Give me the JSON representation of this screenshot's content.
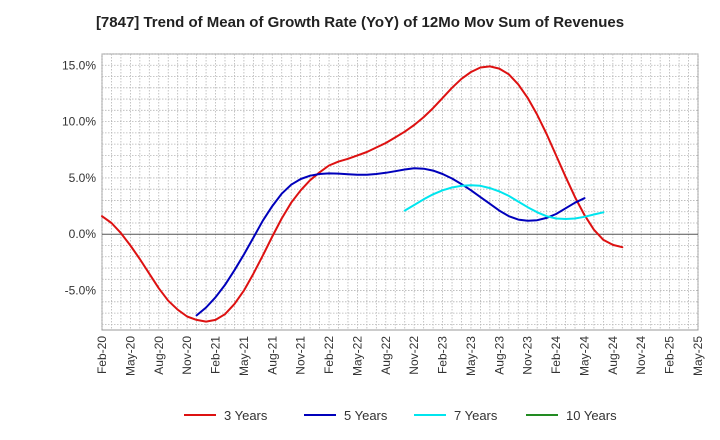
{
  "chart_data": {
    "type": "line",
    "title": "[7847]  Trend of Mean of Growth Rate (YoY) of 12Mo Mov Sum of Revenues",
    "xlabel": "",
    "ylabel": "",
    "x_ticks": [
      "Feb-20",
      "May-20",
      "Aug-20",
      "Nov-20",
      "Feb-21",
      "May-21",
      "Aug-21",
      "Nov-21",
      "Feb-22",
      "May-22",
      "Aug-22",
      "Nov-22",
      "Feb-23",
      "May-23",
      "Aug-23",
      "Nov-23",
      "Feb-24",
      "May-24",
      "Aug-24",
      "Nov-24",
      "Feb-25",
      "May-25"
    ],
    "y_ticks": [
      "15.0%",
      "10.0%",
      "5.0%",
      "0.0%",
      "-5.0%"
    ],
    "y_tick_values": [
      15,
      10,
      5,
      0,
      -5
    ],
    "ylim": [
      -8.5,
      16
    ],
    "x_range": [
      0,
      63
    ],
    "grid": true,
    "legend_position": "bottom",
    "series": [
      {
        "name": "3 Years",
        "color": "#dd1111",
        "points": [
          [
            0,
            1.6
          ],
          [
            1,
            1.0
          ],
          [
            2,
            0.1
          ],
          [
            3,
            -1.0
          ],
          [
            4,
            -2.2
          ],
          [
            5,
            -3.5
          ],
          [
            6,
            -4.8
          ],
          [
            7,
            -5.9
          ],
          [
            8,
            -6.7
          ],
          [
            9,
            -7.3
          ],
          [
            10,
            -7.6
          ],
          [
            11,
            -7.75
          ],
          [
            12,
            -7.6
          ],
          [
            13,
            -7.1
          ],
          [
            14,
            -6.2
          ],
          [
            15,
            -5.0
          ],
          [
            16,
            -3.5
          ],
          [
            17,
            -1.9
          ],
          [
            18,
            -0.2
          ],
          [
            19,
            1.4
          ],
          [
            20,
            2.8
          ],
          [
            21,
            3.9
          ],
          [
            22,
            4.8
          ],
          [
            23,
            5.5
          ],
          [
            24,
            6.1
          ],
          [
            25,
            6.45
          ],
          [
            26,
            6.7
          ],
          [
            27,
            7.0
          ],
          [
            28,
            7.3
          ],
          [
            29,
            7.7
          ],
          [
            30,
            8.1
          ],
          [
            31,
            8.6
          ],
          [
            32,
            9.1
          ],
          [
            33,
            9.7
          ],
          [
            34,
            10.4
          ],
          [
            35,
            11.2
          ],
          [
            36,
            12.1
          ],
          [
            37,
            13.0
          ],
          [
            38,
            13.8
          ],
          [
            39,
            14.4
          ],
          [
            40,
            14.8
          ],
          [
            41,
            14.9
          ],
          [
            42,
            14.7
          ],
          [
            43,
            14.2
          ],
          [
            44,
            13.3
          ],
          [
            45,
            12.1
          ],
          [
            46,
            10.6
          ],
          [
            47,
            8.9
          ],
          [
            48,
            7.0
          ],
          [
            49,
            5.1
          ],
          [
            50,
            3.3
          ],
          [
            51,
            1.7
          ],
          [
            52,
            0.4
          ],
          [
            53,
            -0.5
          ],
          [
            54,
            -0.95
          ],
          [
            55,
            -1.15
          ]
        ]
      },
      {
        "name": "5 Years",
        "color": "#0000bb",
        "points": [
          [
            10,
            -7.2
          ],
          [
            11,
            -6.5
          ],
          [
            12,
            -5.6
          ],
          [
            13,
            -4.5
          ],
          [
            14,
            -3.2
          ],
          [
            15,
            -1.8
          ],
          [
            16,
            -0.3
          ],
          [
            17,
            1.2
          ],
          [
            18,
            2.5
          ],
          [
            19,
            3.6
          ],
          [
            20,
            4.4
          ],
          [
            21,
            4.9
          ],
          [
            22,
            5.2
          ],
          [
            23,
            5.35
          ],
          [
            24,
            5.4
          ],
          [
            25,
            5.38
          ],
          [
            26,
            5.33
          ],
          [
            27,
            5.28
          ],
          [
            28,
            5.28
          ],
          [
            29,
            5.35
          ],
          [
            30,
            5.45
          ],
          [
            31,
            5.6
          ],
          [
            32,
            5.75
          ],
          [
            33,
            5.85
          ],
          [
            34,
            5.82
          ],
          [
            35,
            5.65
          ],
          [
            36,
            5.35
          ],
          [
            37,
            4.95
          ],
          [
            38,
            4.45
          ],
          [
            39,
            3.9
          ],
          [
            40,
            3.3
          ],
          [
            41,
            2.7
          ],
          [
            42,
            2.1
          ],
          [
            43,
            1.6
          ],
          [
            44,
            1.3
          ],
          [
            45,
            1.2
          ],
          [
            46,
            1.25
          ],
          [
            47,
            1.45
          ],
          [
            48,
            1.8
          ],
          [
            49,
            2.3
          ],
          [
            50,
            2.8
          ],
          [
            51,
            3.2
          ]
        ]
      },
      {
        "name": "7 Years",
        "color": "#00e5ee",
        "points": [
          [
            32,
            2.1
          ],
          [
            33,
            2.6
          ],
          [
            34,
            3.1
          ],
          [
            35,
            3.55
          ],
          [
            36,
            3.9
          ],
          [
            37,
            4.15
          ],
          [
            38,
            4.3
          ],
          [
            39,
            4.35
          ],
          [
            40,
            4.3
          ],
          [
            41,
            4.1
          ],
          [
            42,
            3.8
          ],
          [
            43,
            3.4
          ],
          [
            44,
            2.9
          ],
          [
            45,
            2.4
          ],
          [
            46,
            1.95
          ],
          [
            47,
            1.6
          ],
          [
            48,
            1.4
          ],
          [
            49,
            1.35
          ],
          [
            50,
            1.4
          ],
          [
            51,
            1.55
          ],
          [
            52,
            1.75
          ],
          [
            53,
            1.95
          ]
        ]
      },
      {
        "name": "10 Years",
        "color": "#228b22",
        "points": []
      }
    ]
  }
}
